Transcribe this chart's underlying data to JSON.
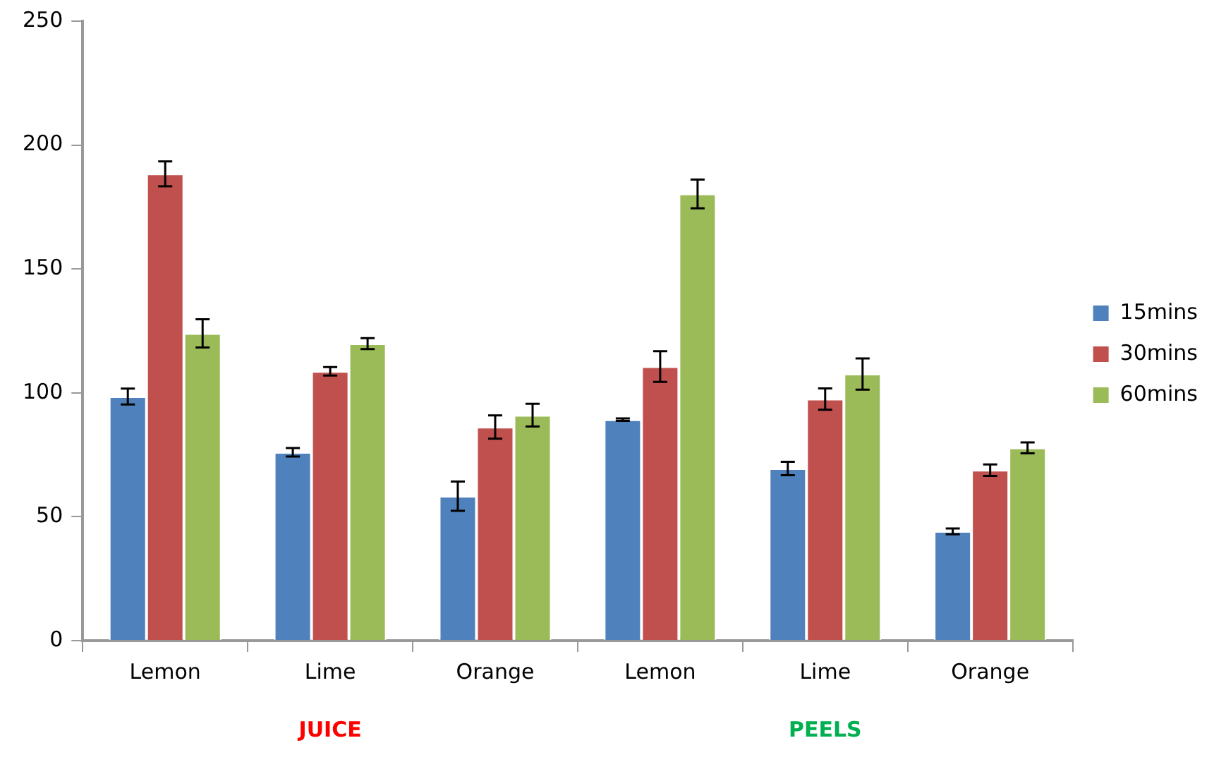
{
  "chart_data": {
    "type": "bar",
    "categories": [
      "Lemon",
      "Lime",
      "Orange",
      "Lemon",
      "Lime",
      "Orange"
    ],
    "series": [
      {
        "name": "15mins",
        "color": "#4f81bd",
        "values": [
          98.5,
          76,
          58.3,
          89.2,
          69.5,
          44.1
        ],
        "errors": [
          3.2,
          1.7,
          5.9,
          0.5,
          2.7,
          1.2
        ]
      },
      {
        "name": "30mins",
        "color": "#c0504d",
        "values": [
          188.4,
          108.7,
          86.2,
          110.6,
          97.5,
          68.8
        ],
        "errors": [
          5,
          1.7,
          4.7,
          6.2,
          4.3,
          2.3
        ]
      },
      {
        "name": "60mins",
        "color": "#9bbb59",
        "values": [
          124,
          119.9,
          91,
          180.3,
          107.6,
          77.8
        ],
        "errors": [
          5.7,
          2.2,
          4.6,
          5.8,
          6.3,
          2.2
        ]
      }
    ],
    "annotations": [
      "JUICE",
      "PEELS"
    ],
    "ylim": [
      0,
      250
    ],
    "yticks": [
      0,
      50,
      100,
      150,
      200,
      250
    ],
    "grid": false,
    "legend": "right"
  }
}
